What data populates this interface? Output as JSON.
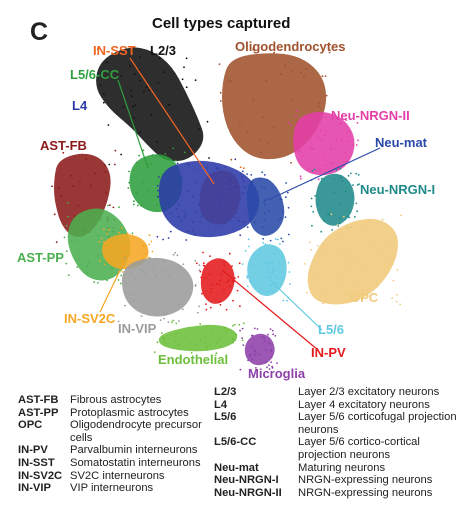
{
  "panel_letter": "C",
  "title": "Cell types captured",
  "clusters": [
    {
      "id": "L2/3",
      "label": "L2/3",
      "color": "#111111"
    },
    {
      "id": "Oligodendrocytes",
      "label": "Oligodendrocytes",
      "color": "#a0522d"
    },
    {
      "id": "IN-SST",
      "label": "IN-SST",
      "color": "#f26522"
    },
    {
      "id": "L5/6-CC",
      "label": "L5/6-CC",
      "color": "#2e9e3e"
    },
    {
      "id": "L4",
      "label": "L4",
      "color": "#2b3aa8"
    },
    {
      "id": "Neu-NRGN-II",
      "label": "Neu-NRGN-II",
      "color": "#e43ea8"
    },
    {
      "id": "Neu-mat",
      "label": "Neu-mat",
      "color": "#2a4aa8"
    },
    {
      "id": "AST-FB",
      "label": "AST-FB",
      "color": "#8b1a1a"
    },
    {
      "id": "Neu-NRGN-I",
      "label": "Neu-NRGN-I",
      "color": "#1f8a8a"
    },
    {
      "id": "AST-PP",
      "label": "AST-PP",
      "color": "#4caf50"
    },
    {
      "id": "OPC",
      "label": "OPC",
      "color": "#f0c97a"
    },
    {
      "id": "IN-SV2C",
      "label": "IN-SV2C",
      "color": "#f5a623"
    },
    {
      "id": "IN-VIP",
      "label": "IN-VIP",
      "color": "#9b9b9b"
    },
    {
      "id": "L5/6",
      "label": "L5/6",
      "color": "#5ec8e0"
    },
    {
      "id": "IN-PV",
      "label": "IN-PV",
      "color": "#e41a1c"
    },
    {
      "id": "Endothelial",
      "label": "Endothelial",
      "color": "#6cbf3a"
    },
    {
      "id": "Microglia",
      "label": "Microglia",
      "color": "#8e3fa8"
    }
  ],
  "legend_left": [
    {
      "abbr": "AST-FB",
      "desc": "Fibrous astrocytes"
    },
    {
      "abbr": "AST-PP",
      "desc": "Protoplasmic astrocytes"
    },
    {
      "abbr": "OPC",
      "desc": "Oligodendrocyte precursor cells"
    },
    {
      "abbr": "IN-PV",
      "desc": "Parvalbumin interneurons"
    },
    {
      "abbr": "IN-SST",
      "desc": "Somatostatin interneurons"
    },
    {
      "abbr": "IN-SV2C",
      "desc": "SV2C interneurons"
    },
    {
      "abbr": "IN-VIP",
      "desc": "VIP interneurons"
    }
  ],
  "legend_right": [
    {
      "abbr": "L2/3",
      "desc": "Layer 2/3 excitatory neurons"
    },
    {
      "abbr": "L4",
      "desc": "Layer 4 excitatory neurons"
    },
    {
      "abbr": "L5/6",
      "desc": "Layer 5/6 corticofugal projection neurons"
    },
    {
      "abbr": "L5/6-CC",
      "desc": "Layer 5/6 cortico-cortical projection neurons"
    },
    {
      "abbr": "Neu-mat",
      "desc": "Maturing neurons"
    },
    {
      "abbr": "Neu-NRGN-I",
      "desc": "NRGN-expressing neurons"
    },
    {
      "abbr": "Neu-NRGN-II",
      "desc": "NRGN-expressing neurons"
    }
  ]
}
